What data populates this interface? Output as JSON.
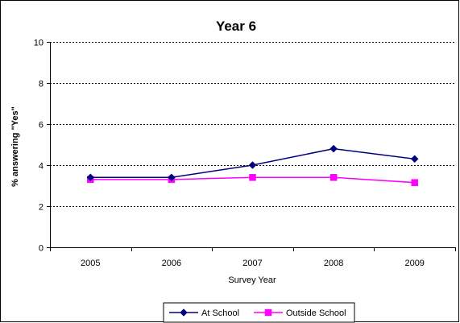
{
  "chart_data": {
    "type": "line",
    "title": "Year 6",
    "xlabel": "Survey Year",
    "ylabel": "% answering \"Yes\"",
    "categories": [
      "2005",
      "2006",
      "2007",
      "2008",
      "2009"
    ],
    "ylim": [
      0,
      10
    ],
    "yticks": [
      0,
      2,
      4,
      6,
      8,
      10
    ],
    "grid": true,
    "legend_position": "bottom",
    "series": [
      {
        "name": "At School",
        "values": [
          3.4,
          3.4,
          4.0,
          4.8,
          4.3
        ],
        "color": "#000080",
        "marker": "diamond"
      },
      {
        "name": "Outside School",
        "values": [
          3.3,
          3.3,
          3.4,
          3.4,
          3.15
        ],
        "color": "#ff00ff",
        "marker": "square"
      }
    ]
  }
}
